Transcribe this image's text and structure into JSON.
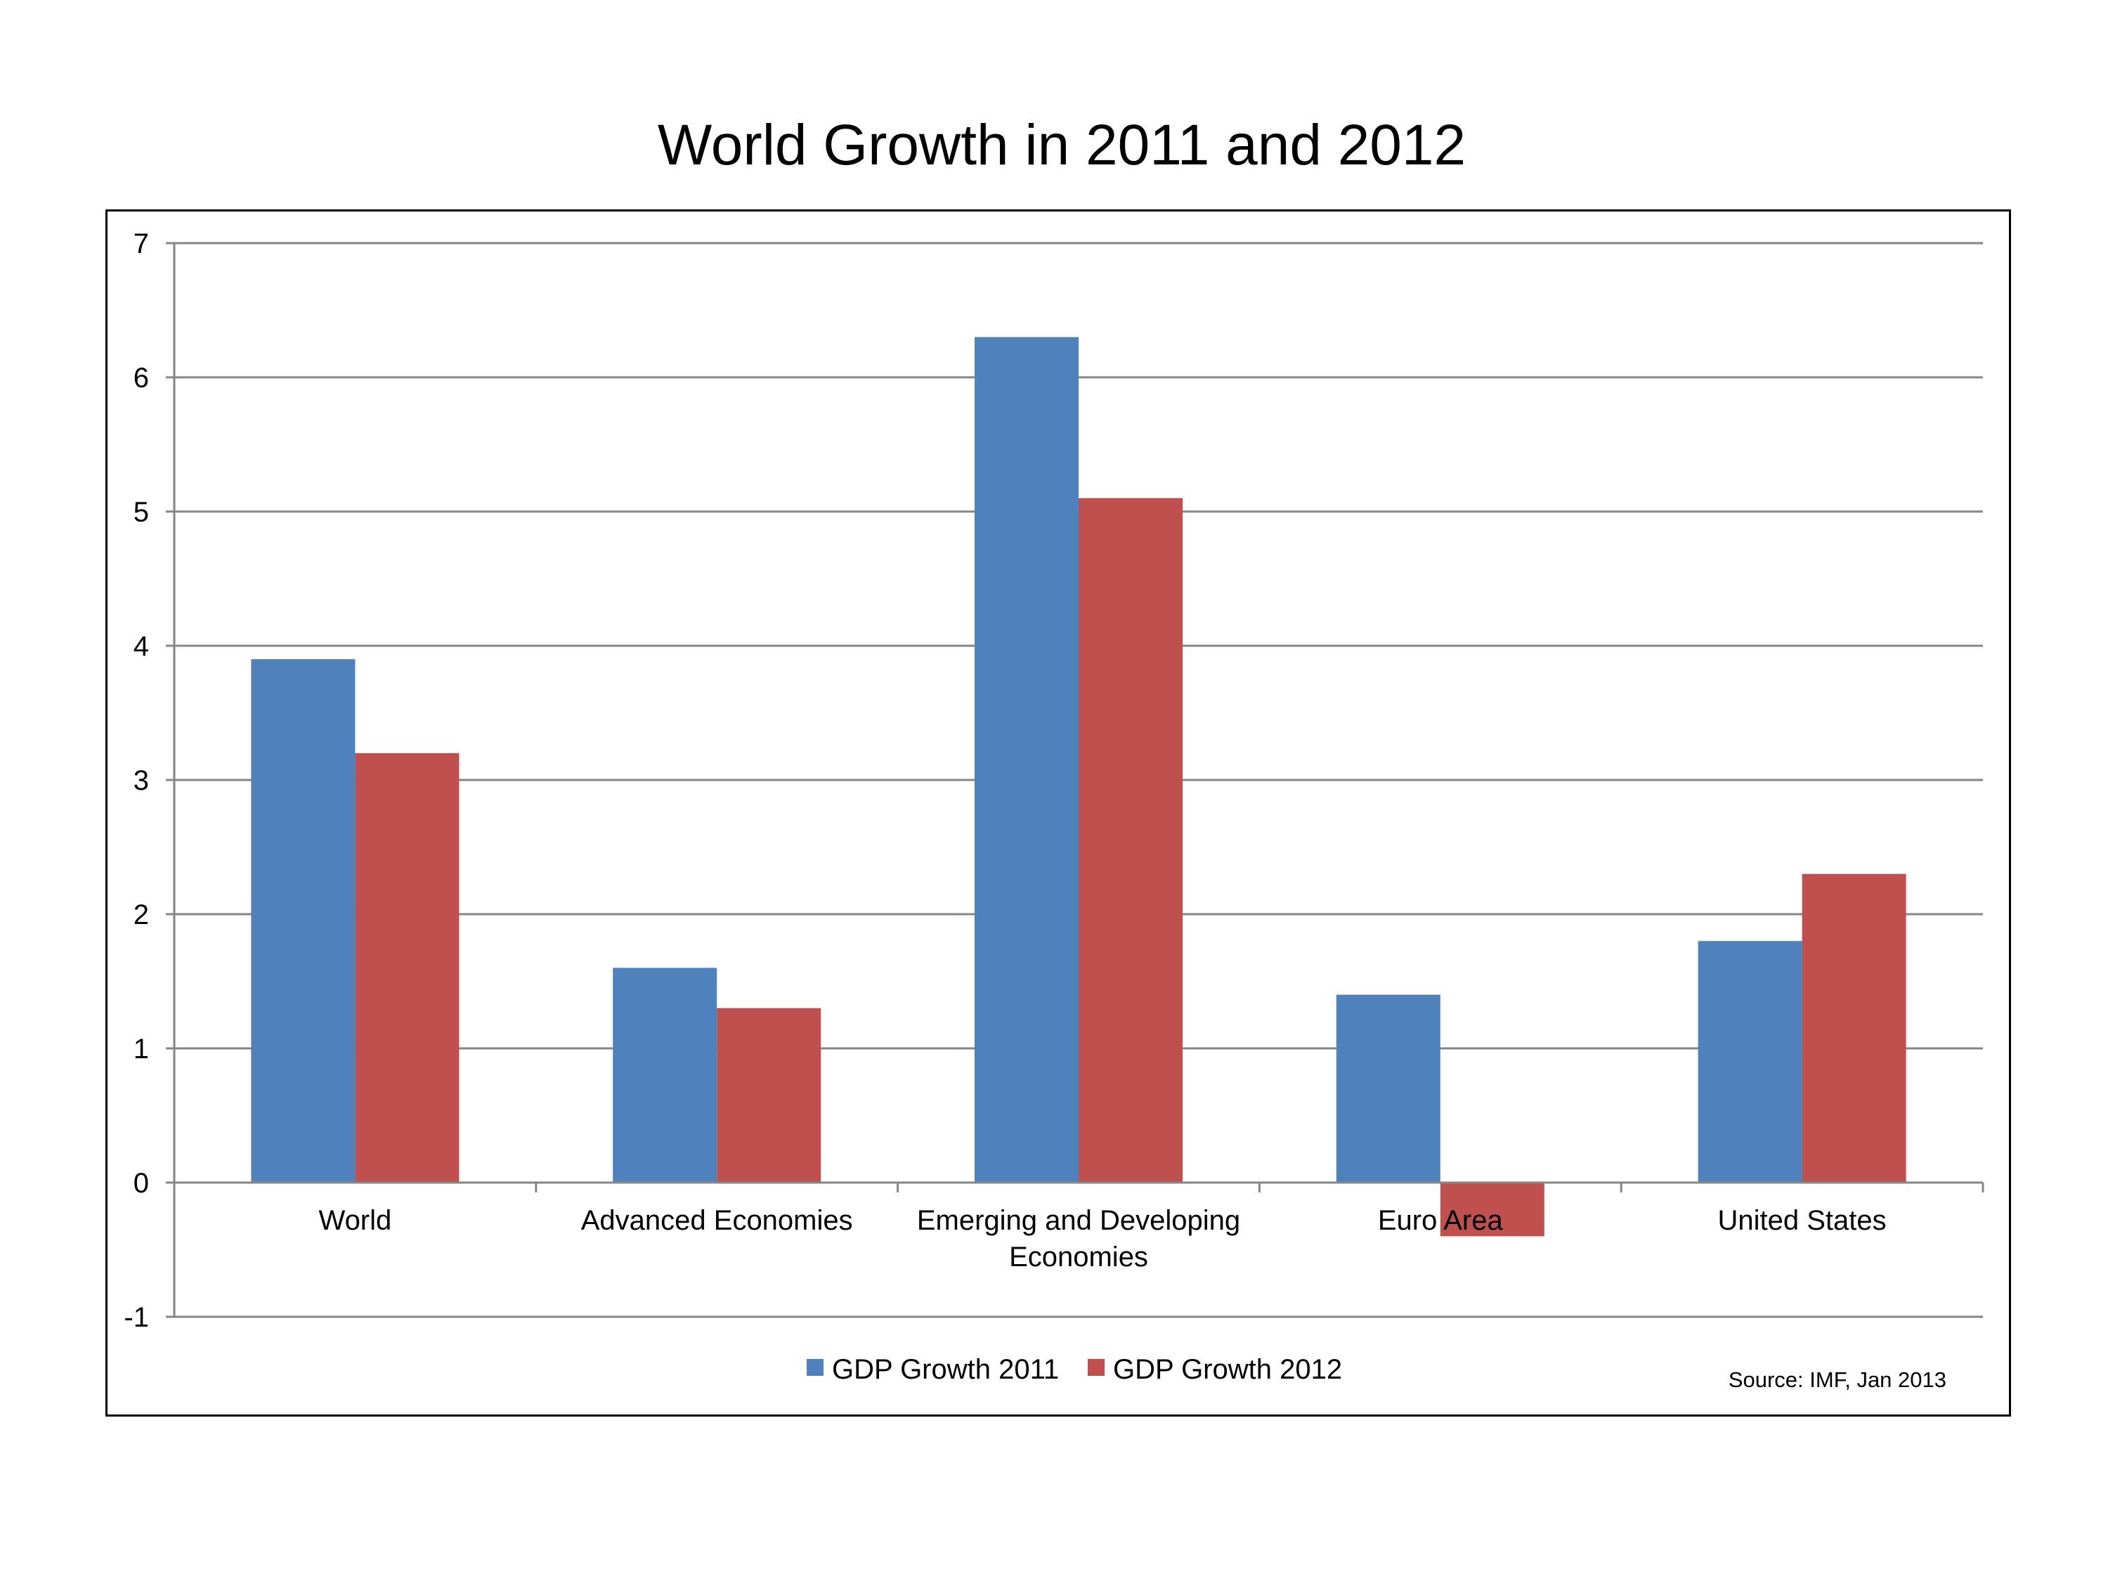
{
  "chart_data": {
    "type": "bar",
    "title": "World Growth in 2011 and 2012",
    "categories": [
      "World",
      "Advanced Economies",
      "Emerging and Developing Economies",
      "Euro Area",
      "United States"
    ],
    "category_lines": [
      [
        "World"
      ],
      [
        "Advanced Economies"
      ],
      [
        "Emerging and Developing",
        "Economies"
      ],
      [
        "Euro Area"
      ],
      [
        "United States"
      ]
    ],
    "series": [
      {
        "name": "GDP Growth 2011",
        "color": "#4f81bd",
        "values": [
          3.9,
          1.6,
          6.3,
          1.4,
          1.8
        ]
      },
      {
        "name": "GDP Growth 2012",
        "color": "#c0504d",
        "values": [
          3.2,
          1.3,
          5.1,
          -0.4,
          2.3
        ]
      }
    ],
    "ylim": [
      -1,
      7
    ],
    "yticks": [
      -1,
      0,
      1,
      2,
      3,
      4,
      5,
      6,
      7
    ],
    "grid": true,
    "legend_position": "bottom",
    "source": "Source: IMF, Jan 2013"
  }
}
